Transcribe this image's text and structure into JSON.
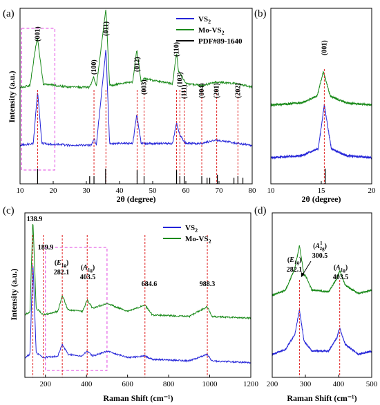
{
  "chart_data": [
    {
      "panel": "(a)",
      "type": "line",
      "xlabel": "2θ (degree)",
      "ylabel": "Intensity (a.u.)",
      "xlim": [
        10,
        80
      ],
      "x_ticks": [
        10,
        20,
        30,
        40,
        50,
        60,
        70,
        80
      ],
      "legend": {
        "position": "top-right",
        "entries": [
          {
            "label": "VS",
            "sub": "2",
            "color": "#2424d8"
          },
          {
            "label": "Mo-VS",
            "sub": "2",
            "color": "#1a8a1a"
          },
          {
            "label": "PDF#89-1640",
            "sub": "",
            "color": "#000000"
          }
        ]
      },
      "series": [
        {
          "name": "Mo-VS2",
          "color": "#1a8a1a",
          "baseline": 0.55,
          "x": [
            10,
            13,
            15.2,
            17,
            25,
            31,
            32.2,
            33,
            35.9,
            37,
            44,
            45.2,
            46.5,
            47.3,
            56,
            57.2,
            57.8,
            59.2,
            60,
            64.8,
            69.3,
            75.7,
            80
          ],
          "y": [
            0.55,
            0.56,
            0.84,
            0.57,
            0.55,
            0.55,
            0.61,
            0.555,
            1.0,
            0.56,
            0.58,
            0.77,
            0.58,
            0.6,
            0.57,
            0.75,
            0.64,
            0.6,
            0.57,
            0.56,
            0.58,
            0.57,
            0.55
          ]
        },
        {
          "name": "VS2",
          "color": "#2424d8",
          "baseline": 0.22,
          "x": [
            10,
            14,
            15.3,
            16.6,
            25,
            31.5,
            32.3,
            33,
            35.9,
            37,
            44,
            45.2,
            46.5,
            56,
            57.2,
            57.9,
            59.2,
            60,
            64.8,
            69.3,
            75.7,
            80
          ],
          "y": [
            0.22,
            0.23,
            0.53,
            0.23,
            0.22,
            0.22,
            0.26,
            0.22,
            0.77,
            0.23,
            0.23,
            0.4,
            0.23,
            0.23,
            0.35,
            0.29,
            0.25,
            0.23,
            0.23,
            0.25,
            0.23,
            0.22
          ]
        }
      ],
      "reference_sticks": {
        "name": "PDF#89-1640",
        "x": [
          15.3,
          31,
          32.3,
          35.8,
          45.3,
          47.4,
          57.2,
          58.2,
          59.5,
          64.8,
          66.4,
          67.2,
          69.5,
          74.5,
          75.7,
          77.2
        ],
        "heights": [
          1,
          0.5,
          0.5,
          1,
          0.9,
          0.5,
          0.9,
          0.5,
          0.5,
          0.5,
          0.4,
          0.4,
          0.6,
          0.4,
          0.5,
          0.4
        ]
      },
      "peak_labels": [
        {
          "label": "(001)",
          "x": 15.3
        },
        {
          "label": "(100)",
          "x": 32.3
        },
        {
          "label": "(011)",
          "x": 35.9
        },
        {
          "label": "(012)",
          "x": 45.3
        },
        {
          "label": "(003)",
          "x": 47.4
        },
        {
          "label": "(110)",
          "x": 57.2
        },
        {
          "label": "(103)",
          "x": 58.2
        },
        {
          "label": "(111)",
          "x": 59.5
        },
        {
          "label": "(004)",
          "x": 64.8
        },
        {
          "label": "(201)",
          "x": 69.3
        },
        {
          "label": "(202)",
          "x": 75.7
        }
      ],
      "highlight_box_x": [
        10.5,
        20.5
      ]
    },
    {
      "panel": "(b)",
      "type": "line",
      "xlabel": "2θ (degree)",
      "xlim": [
        10,
        20
      ],
      "x_ticks": [
        10,
        15,
        20
      ],
      "peak_labels": [
        {
          "label": "(001)",
          "x": 15.3
        }
      ],
      "series": [
        {
          "name": "Mo-VS2",
          "color": "#1a8a1a",
          "x": [
            10,
            13,
            14.6,
            15.2,
            15.9,
            17.5,
            20
          ],
          "y": [
            0.45,
            0.46,
            0.5,
            0.64,
            0.5,
            0.46,
            0.45
          ]
        },
        {
          "name": "VS2",
          "color": "#2424d8",
          "x": [
            10,
            13,
            14.7,
            15.3,
            16,
            17.5,
            20
          ],
          "y": [
            0.15,
            0.16,
            0.2,
            0.45,
            0.2,
            0.16,
            0.15
          ]
        }
      ],
      "reference_sticks": {
        "x": [
          15.4
        ],
        "heights": [
          1
        ]
      }
    },
    {
      "panel": "(c)",
      "type": "line",
      "xlabel": "Raman Shift (cm⁻¹)",
      "ylabel": "Intensity (a.u.)",
      "xlim": [
        100,
        1200
      ],
      "x_ticks": [
        200,
        400,
        600,
        800,
        1000,
        1200
      ],
      "legend": {
        "position": "top-right",
        "entries": [
          {
            "label": "VS",
            "sub": "2",
            "color": "#2424d8"
          },
          {
            "label": "Mo-VS",
            "sub": "2",
            "color": "#1a8a1a"
          }
        ]
      },
      "series": [
        {
          "name": "Mo-VS2",
          "color": "#1a8a1a",
          "x": [
            100,
            125,
            138.9,
            155,
            190,
            260,
            282.1,
            310,
            380,
            403.5,
            430,
            500,
            600,
            684.6,
            720,
            900,
            988.3,
            1010,
            1200
          ],
          "y": [
            0.38,
            0.4,
            0.97,
            0.42,
            0.38,
            0.4,
            0.5,
            0.41,
            0.4,
            0.47,
            0.42,
            0.45,
            0.4,
            0.44,
            0.38,
            0.37,
            0.43,
            0.37,
            0.36
          ]
        },
        {
          "name": "VS2",
          "color": "#2424d8",
          "x": [
            100,
            125,
            138.9,
            155,
            190,
            260,
            282.1,
            310,
            380,
            403.5,
            430,
            500,
            600,
            684.6,
            720,
            900,
            988.3,
            1010,
            1200
          ],
          "y": [
            0.12,
            0.14,
            0.72,
            0.15,
            0.12,
            0.13,
            0.2,
            0.14,
            0.13,
            0.16,
            0.13,
            0.16,
            0.12,
            0.13,
            0.11,
            0.1,
            0.14,
            0.1,
            0.09
          ]
        }
      ],
      "peak_labels": [
        {
          "label": "138.9",
          "x": 138.9
        },
        {
          "label": "189.9",
          "x": 189.9
        },
        {
          "label": "(E1g)",
          "label_sub_text": "282.1",
          "x": 282.1
        },
        {
          "label": "(A1g)",
          "label_sub_text": "403.5",
          "x": 403.5
        },
        {
          "label": "684.6",
          "x": 684.6
        },
        {
          "label": "988.3",
          "x": 988.3
        }
      ],
      "text": {
        "p_138": "138.9",
        "p_189": "189.9",
        "e_main": "E",
        "e_sub": "1g",
        "e_val": "282.1",
        "a_main": "A",
        "a_sub": "1g",
        "a_val": "403.5",
        "p_684": "684.6",
        "p_988": "988.3"
      },
      "highlight_box_x": [
        200,
        500
      ]
    },
    {
      "panel": "(d)",
      "type": "line",
      "xlabel": "Raman Shift (cm⁻¹)",
      "xlim": [
        200,
        500
      ],
      "x_ticks": [
        200,
        300,
        400,
        500
      ],
      "series": [
        {
          "name": "Mo-VS2",
          "color": "#1a8a1a",
          "x": [
            200,
            240,
            268,
            282.1,
            296,
            300.5,
            320,
            370,
            395,
            403.5,
            420,
            460,
            500
          ],
          "y": [
            0.5,
            0.53,
            0.66,
            0.8,
            0.62,
            0.62,
            0.53,
            0.52,
            0.6,
            0.65,
            0.56,
            0.51,
            0.53
          ]
        },
        {
          "name": "VS2",
          "color": "#2424d8",
          "x": [
            200,
            240,
            268,
            282.1,
            296,
            320,
            370,
            395,
            403.5,
            420,
            460,
            500
          ],
          "y": [
            0.14,
            0.17,
            0.26,
            0.41,
            0.22,
            0.16,
            0.16,
            0.24,
            0.3,
            0.2,
            0.14,
            0.16
          ]
        }
      ],
      "text": {
        "e_main": "E",
        "e_sub": "1g",
        "e_val": "282.1",
        "a2_main": "A",
        "a2_sup": "1",
        "a2_sub": "2g",
        "a2_val": "300.5",
        "a_main": "A",
        "a_sub": "1g",
        "a_val": "403.5"
      },
      "dashed_x": [
        282.1,
        403.5
      ]
    }
  ]
}
